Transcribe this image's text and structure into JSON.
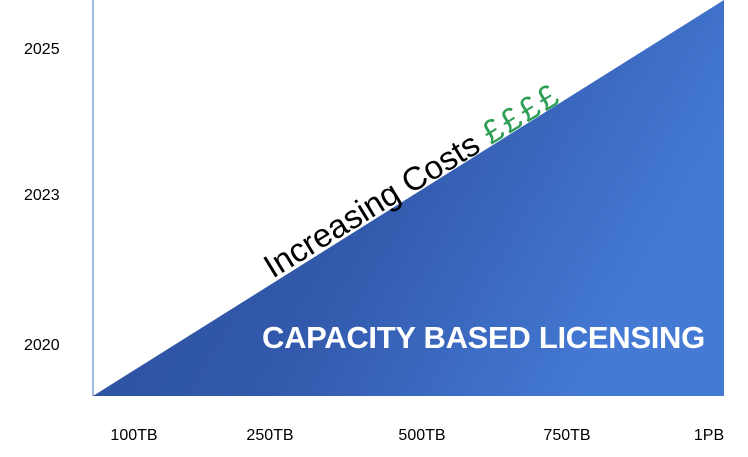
{
  "chart_data": {
    "type": "area",
    "y_ticks": [
      "2025",
      "2023",
      "2020"
    ],
    "x_ticks": [
      "100TB",
      "250TB",
      "500TB",
      "750TB",
      "1PB"
    ],
    "banner": "CAPACITY BASED LICENSING",
    "annotation": "Increasing Costs",
    "cost_symbols": "££££",
    "colors": {
      "area_dark": "#2f54a3",
      "area_light": "#4177cf",
      "symbols": "#2e9e55",
      "axis": "#4472c4"
    }
  }
}
